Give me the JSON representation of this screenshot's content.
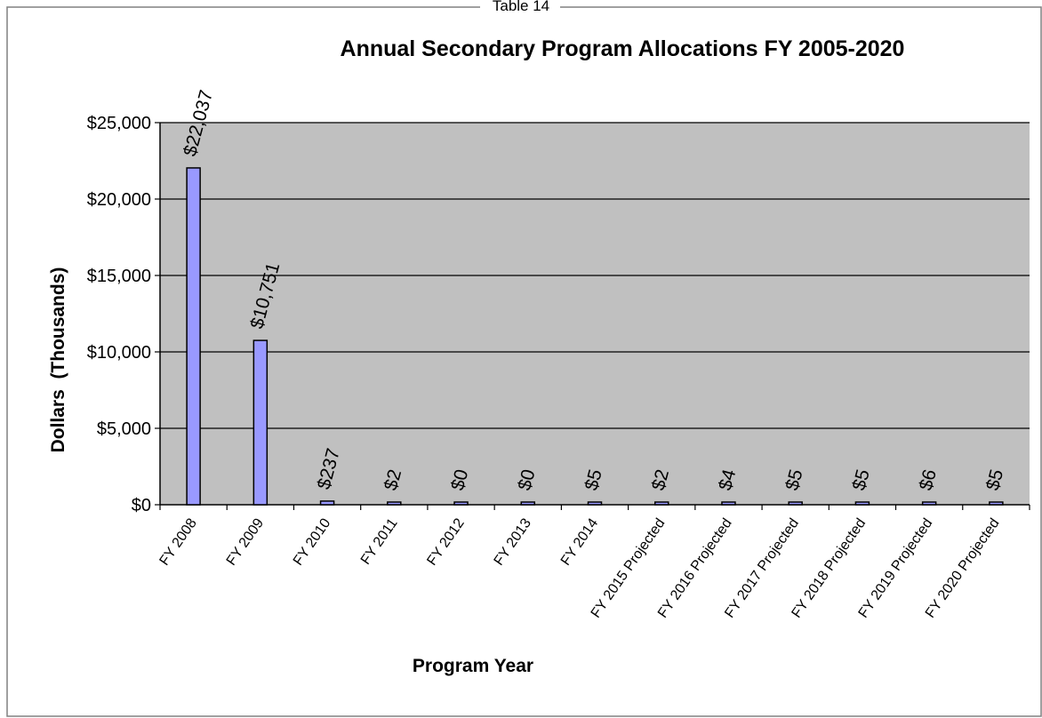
{
  "caption": "Table 14",
  "colors": {
    "plot_background": "#c0c0c0",
    "bar_fill": "#9999ff",
    "bar_stroke": "#000000",
    "gridline": "#000000"
  },
  "chart_data": {
    "type": "bar",
    "title": "Annual Secondary Program Allocations FY 2005-2020",
    "xlabel": "Program Year",
    "ylabel": "Dollars  (Thousands)",
    "ylim": [
      0,
      25000
    ],
    "yticks": [
      0,
      5000,
      10000,
      15000,
      20000,
      25000
    ],
    "ytick_labels": [
      "$0",
      "$5,000",
      "$10,000",
      "$15,000",
      "$20,000",
      "$25,000"
    ],
    "grid": true,
    "legend": "none",
    "categories": [
      "FY 2008",
      "FY 2009",
      "FY 2010",
      "FY 2011",
      "FY 2012",
      "FY 2013",
      "FY 2014",
      "FY 2015 Projected",
      "FY 2016 Projected",
      "FY 2017 Projected",
      "FY 2018 Projected",
      "FY 2019 Projected",
      "FY 2020 Projected"
    ],
    "values": [
      22037,
      10751,
      237,
      2,
      0,
      0,
      5,
      2,
      4,
      5,
      5,
      6,
      5
    ],
    "data_labels": [
      "$22,037",
      "$10,751",
      "$237",
      "$2",
      "$0",
      "$0",
      "$5",
      "$2",
      "$4",
      "$5",
      "$5",
      "$6",
      "$5"
    ]
  }
}
